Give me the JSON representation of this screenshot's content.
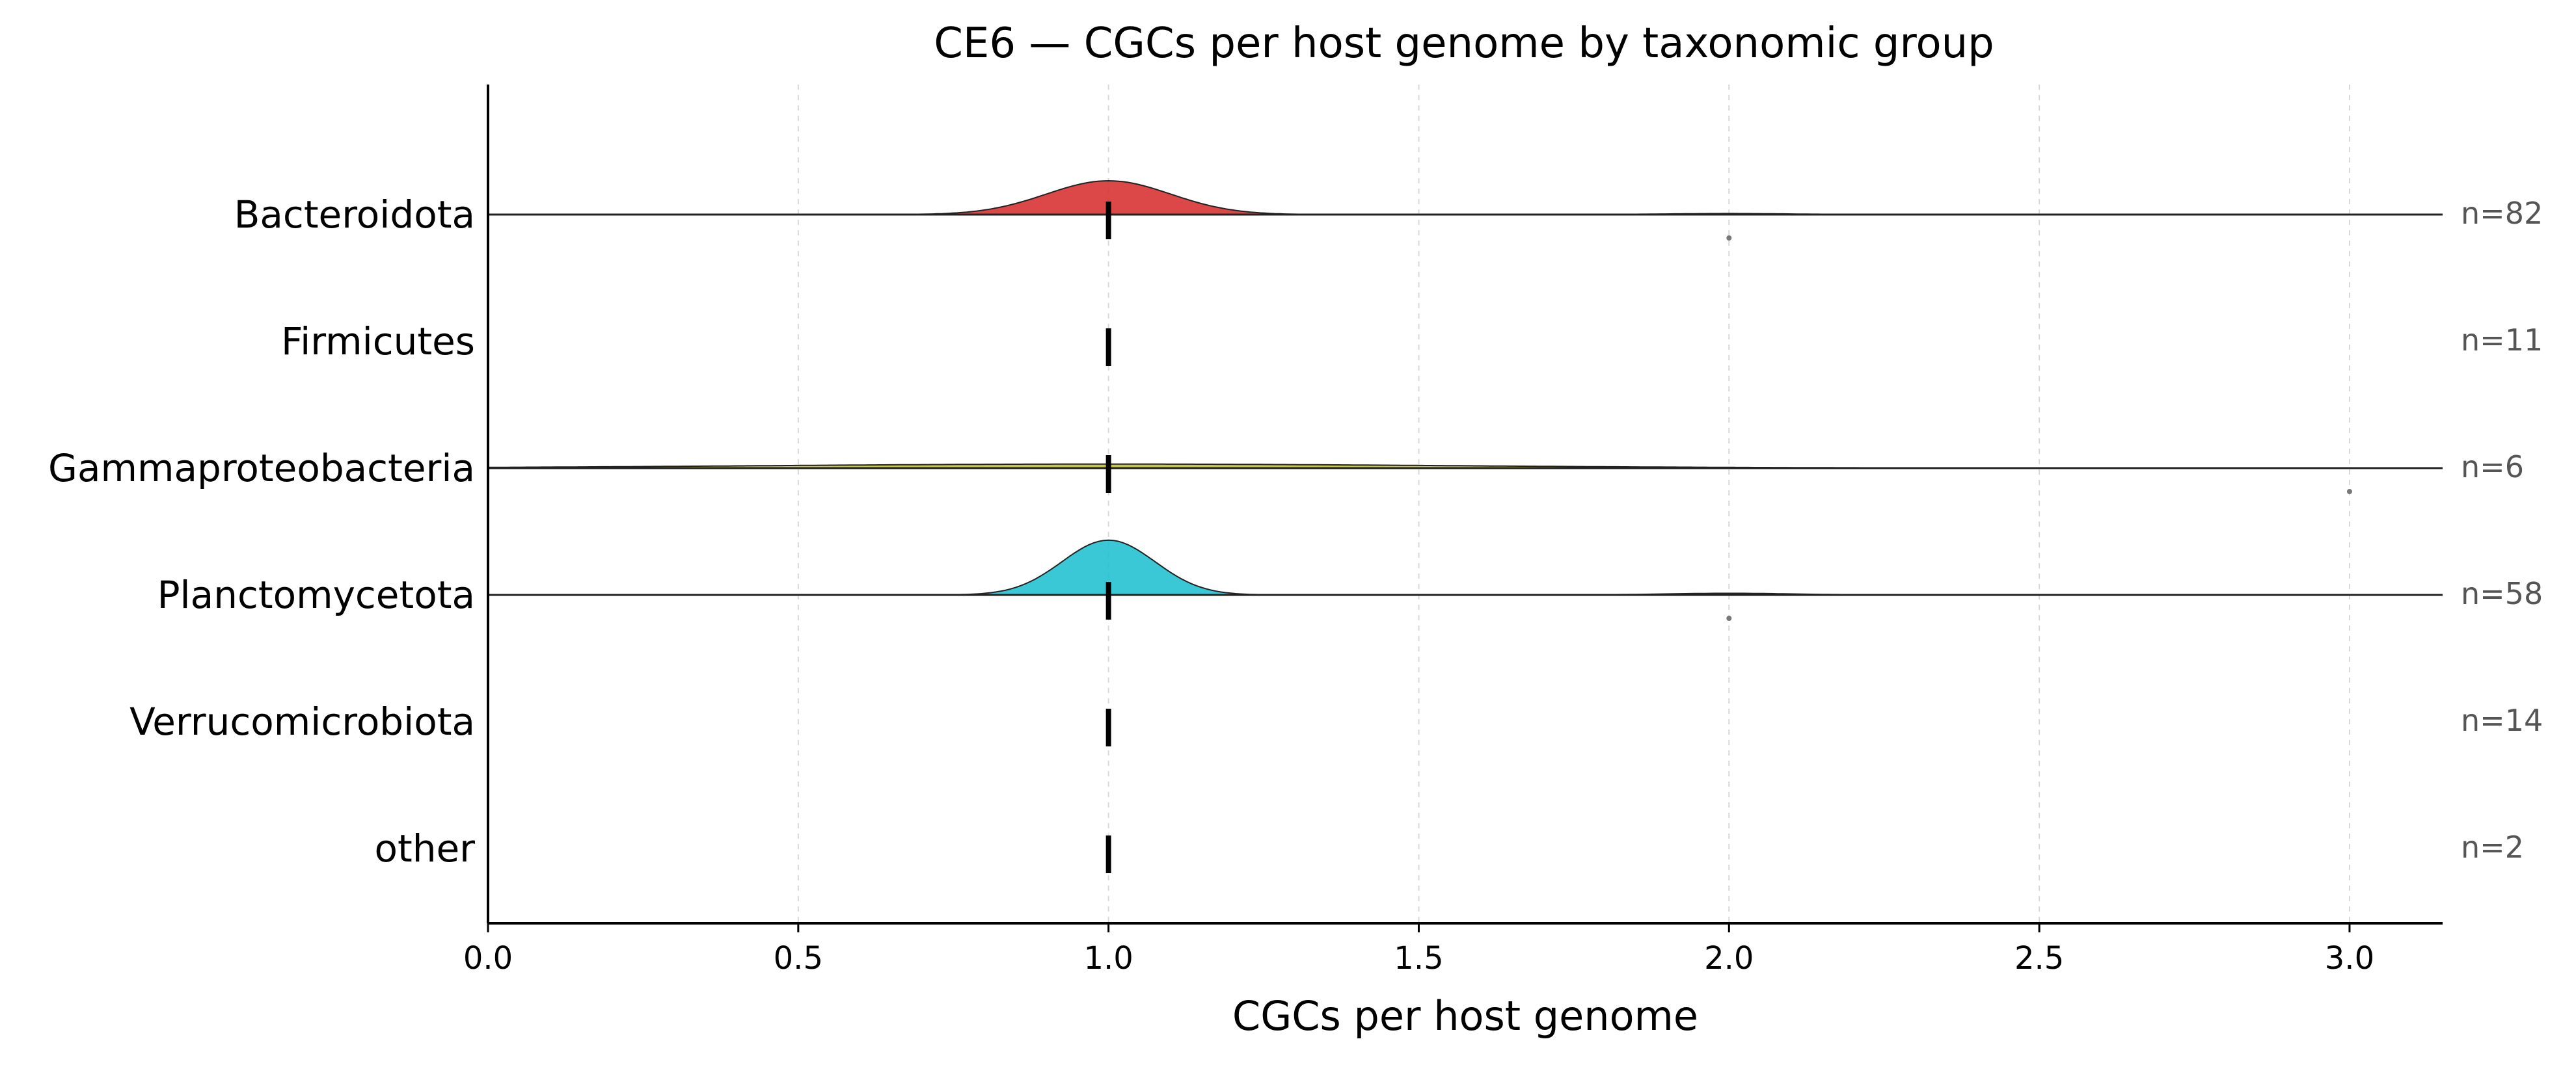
{
  "chart_data": {
    "type": "ridgeline",
    "title": "CE6 — CGCs per host genome by taxonomic group",
    "xlabel": "CGCs per host genome",
    "xlim": [
      0.0,
      3.15
    ],
    "xticks": [
      "0.0",
      "0.5",
      "1.0",
      "1.5",
      "2.0",
      "2.5",
      "3.0"
    ],
    "xtick_values": [
      0.0,
      0.5,
      1.0,
      1.5,
      2.0,
      2.5,
      3.0
    ],
    "grid": "vertical dashed",
    "groups": [
      {
        "name": "Bacteroidota",
        "count_label": "n=82",
        "n": 82,
        "color": "#d62728",
        "median": 1.0,
        "density_peak": 1.0,
        "density_bandwidth": 0.1,
        "secondary_mode": 2.0,
        "outliers": [
          2.0
        ]
      },
      {
        "name": "Firmicutes",
        "count_label": "n=11",
        "n": 11,
        "color": "#9467bd",
        "median": 1.0,
        "density_peak": null,
        "outliers": []
      },
      {
        "name": "Gammaproteobacteria",
        "count_label": "n=6",
        "n": 6,
        "color": "#bcbd22",
        "median": 1.0,
        "density_peak": 1.0,
        "density_bandwidth": 0.55,
        "outliers": [
          3.0
        ]
      },
      {
        "name": "Planctomycetota",
        "count_label": "n=58",
        "n": 58,
        "color": "#17becf",
        "median": 1.0,
        "density_peak": 1.0,
        "density_bandwidth": 0.075,
        "secondary_mode": 2.0,
        "outliers": [
          2.0
        ]
      },
      {
        "name": "Verrucomicrobiota",
        "count_label": "n=14",
        "n": 14,
        "color": "#8c564b",
        "median": 1.0,
        "density_peak": null,
        "outliers": []
      },
      {
        "name": "other",
        "count_label": "n=2",
        "n": 2,
        "color": "#7f7f7f",
        "median": 1.0,
        "density_peak": null,
        "outliers": []
      }
    ]
  }
}
